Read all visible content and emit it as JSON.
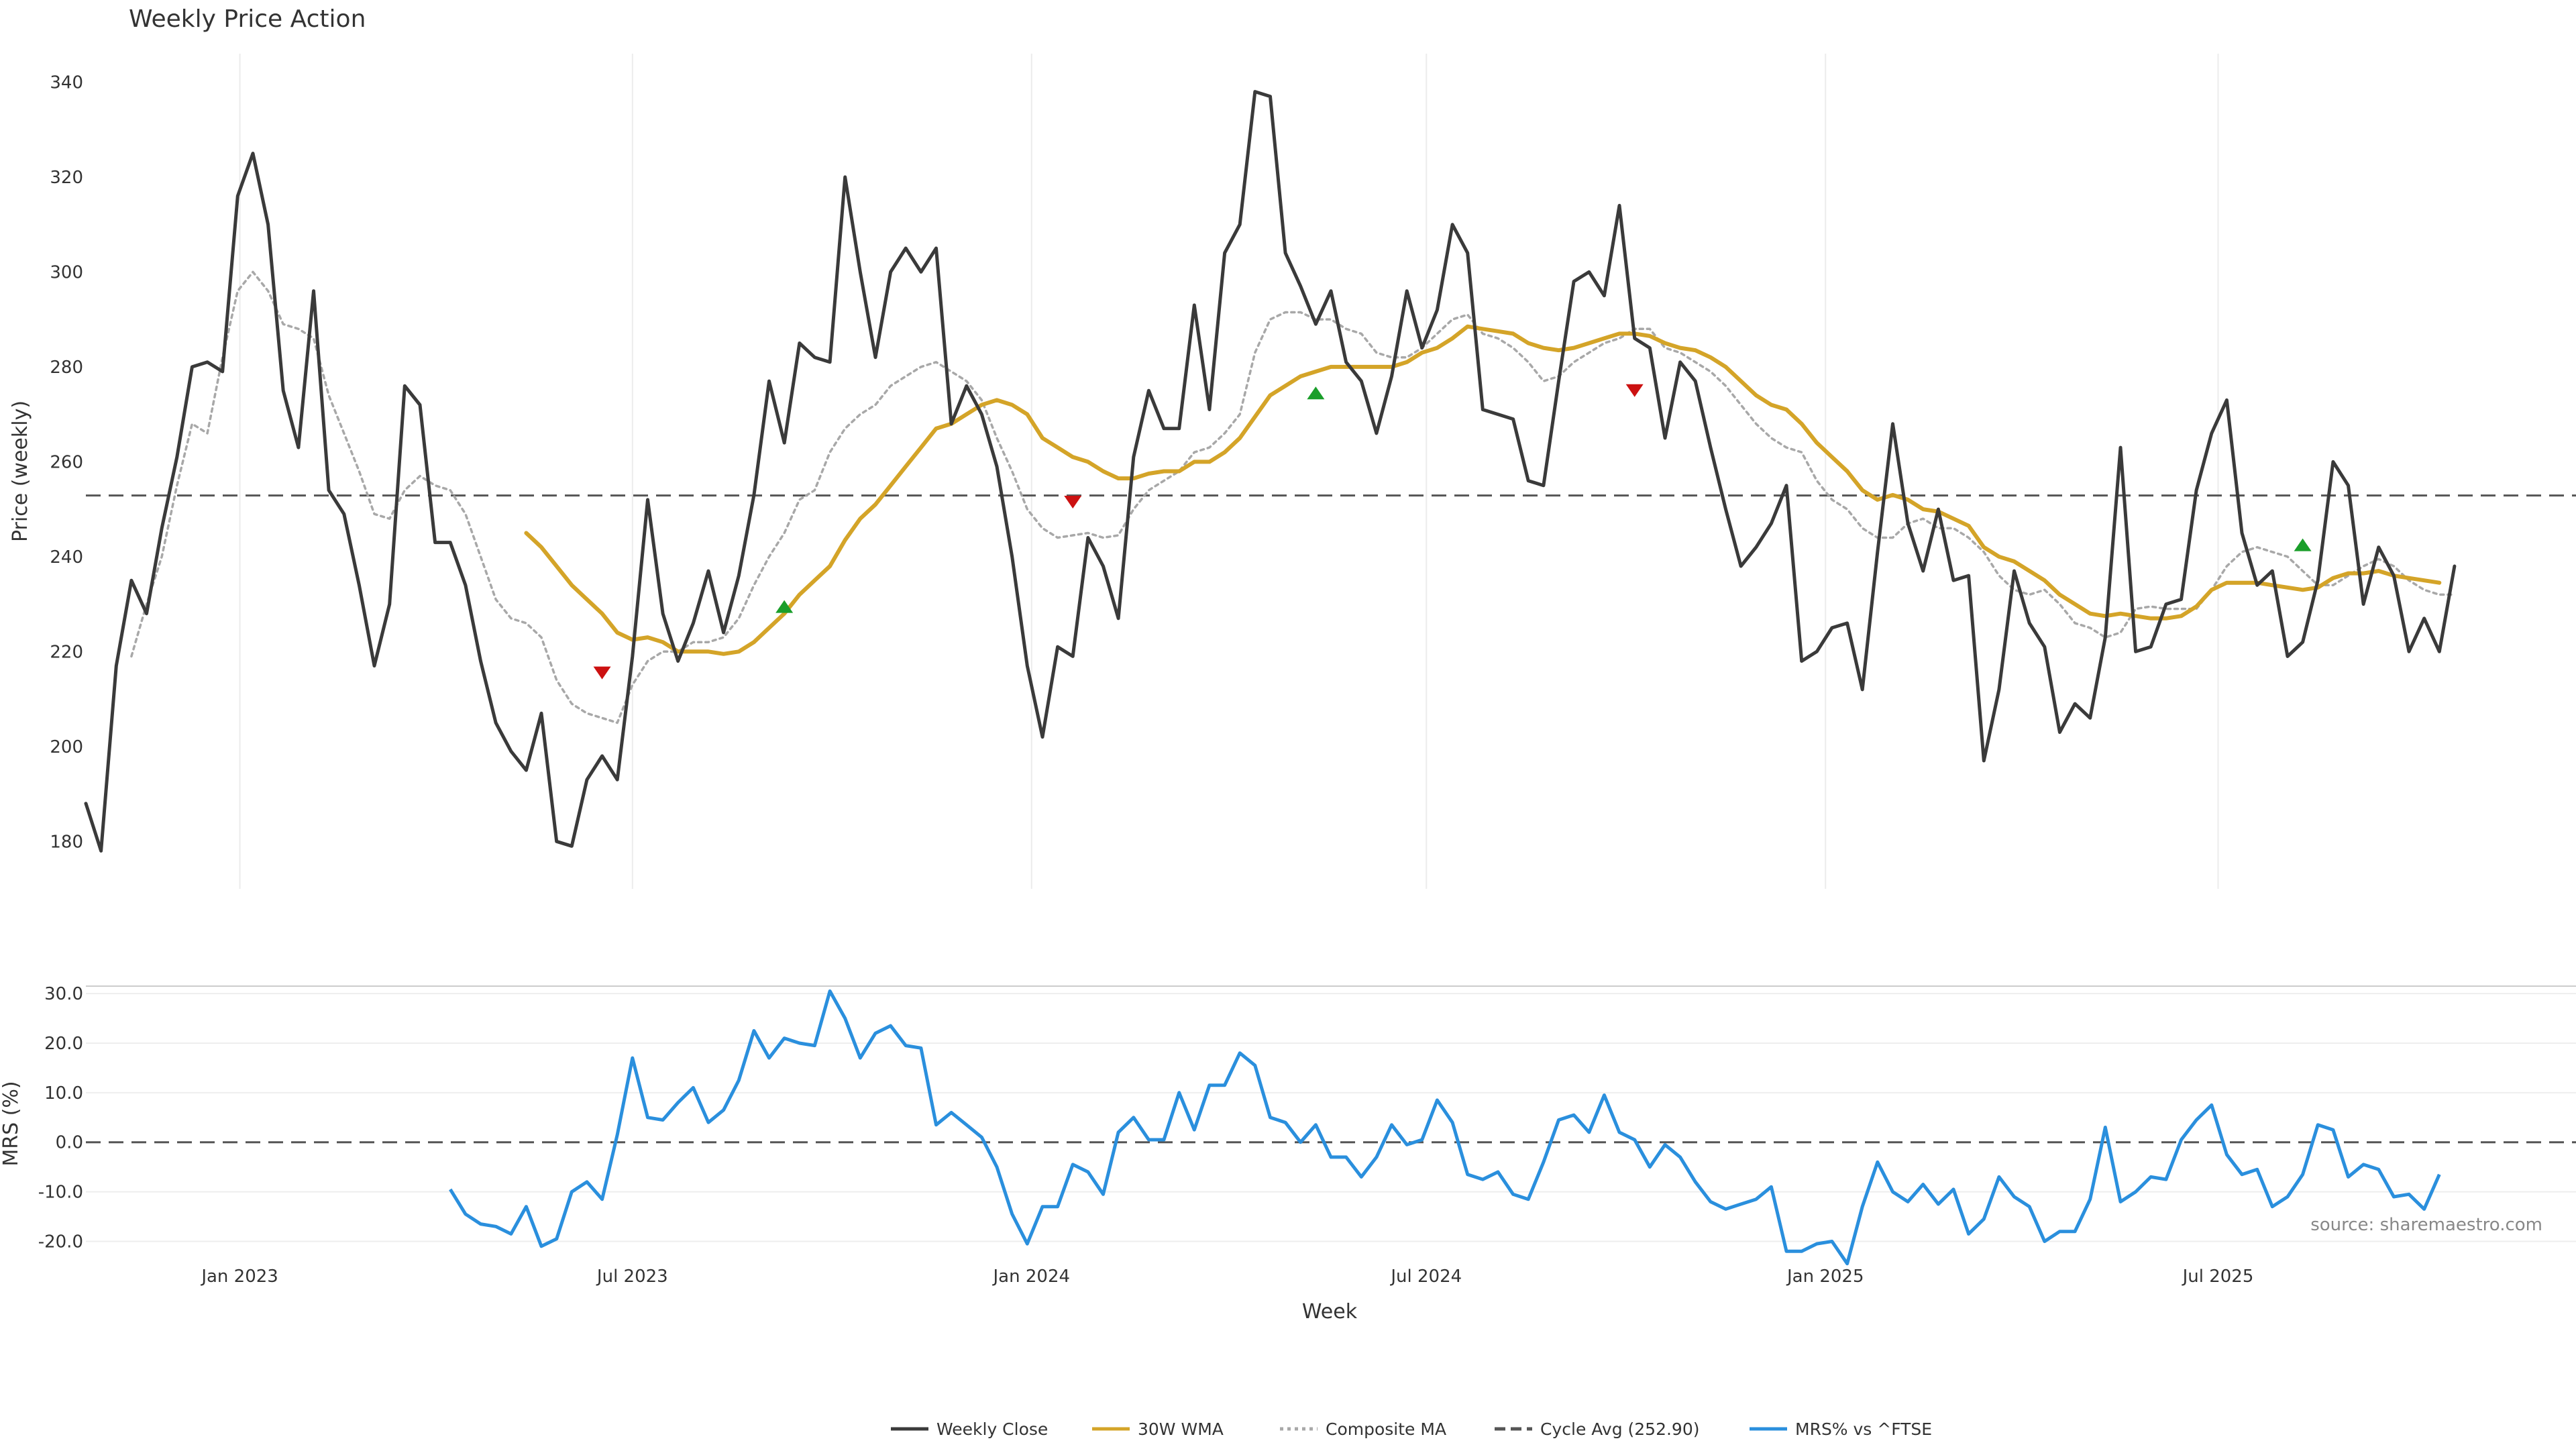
{
  "chart_data": [
    {
      "type": "line",
      "title": "Weekly Price Action",
      "ylabel": "Price (weekly)",
      "ylim": [
        170,
        346
      ],
      "yticks": [
        180,
        200,
        220,
        240,
        260,
        280,
        300,
        320,
        340
      ],
      "x_range": [
        "2022-10-22",
        "2025-12-13"
      ],
      "x_start": "2022-10-22",
      "x_step_days": 7,
      "xticks": [
        {
          "date": "2023-01-01",
          "label": "Jan 2023"
        },
        {
          "date": "2023-07-01",
          "label": "Jul 2023"
        },
        {
          "date": "2024-01-01",
          "label": "Jan 2024"
        },
        {
          "date": "2024-07-01",
          "label": "Jul 2024"
        },
        {
          "date": "2025-01-01",
          "label": "Jan 2025"
        },
        {
          "date": "2025-07-01",
          "label": "Jul 2025"
        }
      ],
      "grid": "vertical",
      "series": [
        {
          "name": "Weekly Close",
          "color": "#3a3a3a",
          "style": "solid",
          "values": [
            188,
            178,
            217,
            235,
            228,
            246,
            261,
            280,
            281,
            279,
            316,
            325,
            310,
            275,
            263,
            296,
            254,
            249,
            234,
            217,
            230,
            276,
            272,
            243,
            243,
            234,
            218,
            205,
            199,
            195,
            207,
            180,
            179,
            193,
            198,
            193,
            219,
            252,
            228,
            218,
            226,
            237,
            224,
            236,
            253,
            277,
            264,
            285,
            282,
            281,
            320,
            300,
            282,
            300,
            305,
            300,
            305,
            268,
            276,
            270,
            259,
            240,
            217,
            202,
            221,
            219,
            244,
            238,
            227,
            261,
            275,
            267,
            267,
            293,
            271,
            304,
            310,
            338,
            337,
            304,
            297,
            289,
            296,
            281,
            277,
            266,
            278,
            296,
            284,
            292,
            310,
            304,
            271,
            270,
            269,
            256,
            255,
            277,
            298,
            300,
            295,
            314,
            286,
            284,
            265,
            281,
            277,
            263,
            250,
            238,
            242,
            247,
            255,
            218,
            220,
            225,
            226,
            212,
            241,
            268,
            247,
            237,
            250,
            235,
            236,
            197,
            212,
            237,
            226,
            221,
            203,
            209,
            206,
            223,
            263,
            220,
            221,
            230,
            231,
            254,
            266,
            273,
            245,
            234,
            237,
            219,
            222,
            235,
            260,
            255,
            230,
            242,
            236,
            220,
            227,
            220,
            238
          ]
        },
        {
          "name": "30W WMA",
          "color": "#d4a428",
          "style": "solid",
          "values": [
            null,
            null,
            null,
            null,
            null,
            null,
            null,
            null,
            null,
            null,
            null,
            null,
            null,
            null,
            null,
            null,
            null,
            null,
            null,
            null,
            null,
            null,
            null,
            null,
            null,
            null,
            null,
            null,
            null,
            245,
            242,
            238,
            234,
            231,
            228,
            224,
            222.5,
            223,
            222,
            220,
            220,
            220,
            219.5,
            220,
            222,
            225,
            228,
            232,
            235,
            238,
            243.5,
            248,
            251,
            255,
            259,
            263,
            267,
            268,
            270,
            272,
            273,
            272,
            270,
            265,
            263,
            261,
            260,
            258,
            256.5,
            256.5,
            257.5,
            258,
            258,
            260,
            260,
            262,
            265,
            269.5,
            274,
            276,
            278,
            279,
            280,
            280,
            280,
            280,
            280,
            281,
            283,
            284,
            286,
            288.5,
            288,
            287.5,
            287,
            285,
            284,
            283.5,
            284,
            285,
            286,
            287,
            287,
            286.5,
            285,
            284,
            283.5,
            282,
            280,
            277,
            274,
            272,
            271,
            268,
            264,
            261,
            258,
            254,
            252,
            253,
            252,
            250,
            249.5,
            248,
            246.5,
            242,
            240,
            239,
            237,
            235,
            232,
            230,
            228,
            227.5,
            228,
            227.5,
            227,
            227,
            227.5,
            229.5,
            233,
            234.5,
            234.5,
            234.5,
            234,
            233.5,
            233,
            233.5,
            235.5,
            236.5,
            236.5,
            237,
            236,
            235.5,
            235,
            234.5
          ]
        },
        {
          "name": "Composite MA",
          "color": "#a8a8a8",
          "style": "dotted",
          "values": [
            null,
            null,
            null,
            219,
            230,
            240,
            255,
            268,
            266,
            282,
            296,
            300,
            296,
            289,
            288,
            286,
            274,
            266,
            258,
            249,
            248,
            254,
            257,
            255,
            254,
            249,
            240,
            231,
            227,
            226,
            223,
            214,
            209,
            207,
            206,
            205,
            213,
            218,
            220,
            220,
            222,
            222,
            223,
            227,
            234,
            240,
            245,
            252,
            254,
            262,
            267,
            270,
            272,
            276,
            278,
            280,
            281,
            279,
            277,
            273,
            265,
            258,
            250,
            246,
            244,
            244.5,
            245,
            244,
            244.5,
            250,
            254,
            256,
            258,
            262,
            263,
            266,
            270,
            283,
            290,
            291.5,
            291.5,
            290,
            290,
            288,
            287,
            283,
            282,
            282,
            284,
            287,
            290,
            291,
            287,
            286,
            284,
            281,
            277,
            278,
            281,
            283,
            285,
            286,
            288,
            288,
            284,
            283,
            281,
            279,
            276,
            272,
            268,
            265,
            263,
            262,
            256,
            252,
            250,
            246,
            244,
            244,
            247,
            248,
            246,
            246,
            244,
            241,
            236,
            233,
            232,
            233,
            230,
            226,
            225,
            223,
            224,
            229,
            229.5,
            229,
            229,
            229,
            233,
            238,
            241,
            242,
            241,
            240,
            237,
            234,
            234,
            236,
            238,
            239.5,
            238,
            235,
            233,
            232,
            232
          ]
        },
        {
          "name": "Cycle Avg (252.90)",
          "color": "#555555",
          "style": "dashed",
          "constant": 252.9
        }
      ],
      "markers": [
        {
          "date": "2023-06-17",
          "direction": "down",
          "color": "#cc1111",
          "price": 215.5
        },
        {
          "date": "2023-09-09",
          "direction": "up",
          "color": "#1a9e2a",
          "price": 229.5
        },
        {
          "date": "2024-01-20",
          "direction": "down",
          "color": "#cc1111",
          "price": 251.5
        },
        {
          "date": "2024-05-11",
          "direction": "up",
          "color": "#1a9e2a",
          "price": 274.5
        },
        {
          "date": "2024-10-05",
          "direction": "down",
          "color": "#cc1111",
          "price": 275
        },
        {
          "date": "2025-08-09",
          "direction": "up",
          "color": "#1a9e2a",
          "price": 242.5
        }
      ]
    },
    {
      "type": "line",
      "ylabel": "MRS (%)",
      "ylim": [
        -24,
        31.5
      ],
      "yticks": [
        -20,
        -10,
        0,
        10,
        20,
        30
      ],
      "ytick_labels": [
        "-20.0",
        "-10.0",
        "0.0",
        "10.0",
        "20.0",
        "30.0"
      ],
      "xlabel": "Week",
      "grid": "horizontal",
      "series": [
        {
          "name": "MRS% vs ^FTSE",
          "color": "#2a8fdd",
          "style": "solid",
          "values": [
            null,
            null,
            null,
            null,
            null,
            null,
            null,
            null,
            null,
            null,
            null,
            null,
            null,
            null,
            null,
            null,
            null,
            null,
            null,
            null,
            null,
            null,
            null,
            null,
            -9.5,
            -14.5,
            -16.5,
            -17,
            -18.5,
            -13,
            -21,
            -19.5,
            -10,
            -8,
            -11.5,
            1.5,
            17,
            5,
            4.5,
            8,
            11,
            4,
            6.5,
            12.5,
            22.5,
            17,
            21,
            20,
            19.5,
            30.5,
            25,
            17,
            22,
            23.5,
            19.5,
            19,
            3.5,
            6,
            3.5,
            1,
            -5,
            -14.5,
            -20.5,
            -13,
            -13,
            -4.5,
            -6,
            -10.5,
            2,
            5,
            0.5,
            0.5,
            10,
            2.5,
            11.5,
            11.5,
            18,
            15.5,
            5,
            4,
            0,
            3.5,
            -3,
            -3,
            -7,
            -3,
            3.5,
            -0.5,
            0.5,
            8.5,
            4,
            -6.5,
            -7.5,
            -6,
            -10.5,
            -11.5,
            -4,
            4.5,
            5.5,
            2,
            9.5,
            2,
            0.5,
            -5,
            -0.5,
            -3,
            -8,
            -12,
            -13.5,
            -12.5,
            -11.5,
            -9,
            -22,
            -22,
            -20.5,
            -20,
            -24.5,
            -13,
            -4,
            -10,
            -12,
            -8.5,
            -12.5,
            -9.5,
            -18.5,
            -15.5,
            -7,
            -11,
            -13,
            -20,
            -18,
            -18,
            -11.5,
            3,
            -12,
            -10,
            -7,
            -7.5,
            0.5,
            4.5,
            7.5,
            -2.5,
            -6.5,
            -5.5,
            -13,
            -11,
            -6.5,
            3.5,
            2.5,
            -7,
            -4.5,
            -5.5,
            -11,
            -10.5,
            -13.5,
            -6.5
          ]
        },
        {
          "name": "zero-line",
          "color": "#555555",
          "style": "dashed",
          "constant": 0
        }
      ]
    }
  ],
  "legend": {
    "placement": "bottom-center",
    "items": [
      {
        "label": "Weekly Close",
        "color": "#3a3a3a",
        "style": "solid"
      },
      {
        "label": "30W WMA",
        "color": "#d4a428",
        "style": "solid"
      },
      {
        "label": "Composite MA",
        "color": "#a8a8a8",
        "style": "dotted"
      },
      {
        "label": "Cycle Avg (252.90)",
        "color": "#555555",
        "style": "dashed"
      },
      {
        "label": "MRS% vs ^FTSE",
        "color": "#2a8fdd",
        "style": "solid"
      }
    ]
  },
  "source_note": "source: sharemaestro.com"
}
